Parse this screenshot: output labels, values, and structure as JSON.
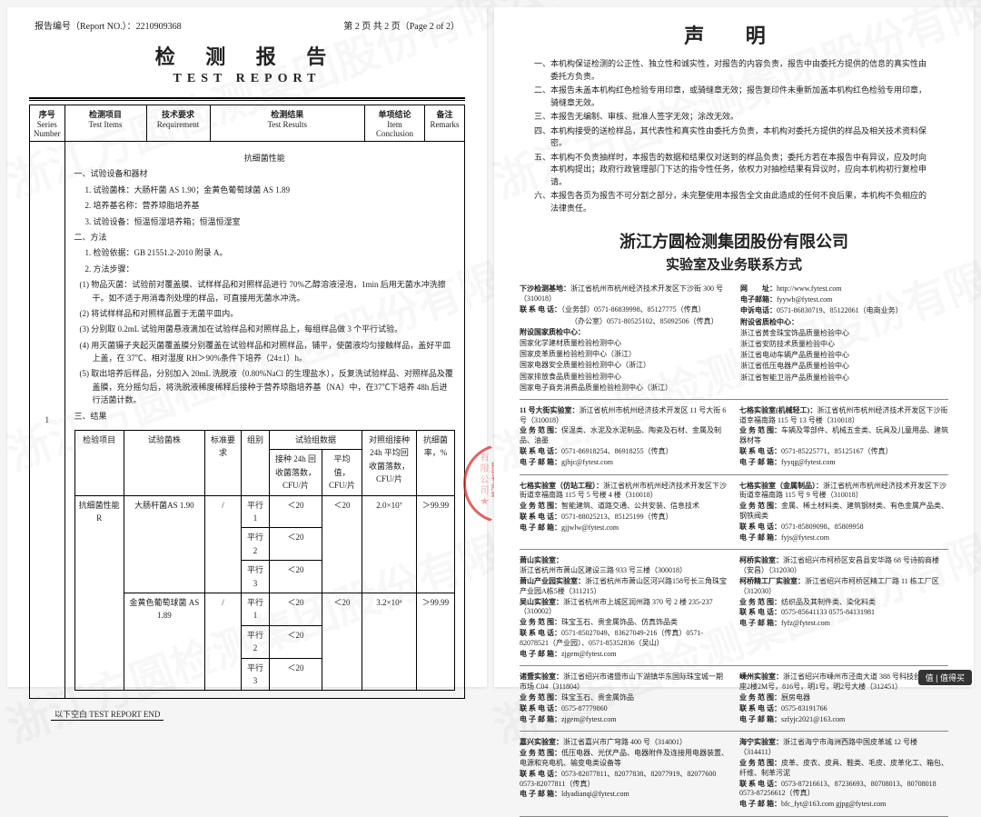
{
  "header": {
    "report_no_label": "报告编号（Report NO.）：",
    "report_no": "2210909368",
    "page_label": "第 2 页 共 2 页（Page 2 of 2）",
    "title_cn": "检 测 报 告",
    "title_en": "TEST   REPORT"
  },
  "columns": {
    "c1_cn": "序号",
    "c1_en": "Series Number",
    "c2_cn": "检测项目",
    "c2_en": "Test Items",
    "c3_cn": "技术要求",
    "c3_en": "Requirement",
    "c4_cn": "检测结果",
    "c4_en": "Test Results",
    "c5_cn": "单项结论",
    "c5_en": "Item Conclusion",
    "c6_cn": "备注",
    "c6_en": "Remarks"
  },
  "row_no": "1",
  "perf_title": "抗细菌性能",
  "s1": "一、试验设备和器材",
  "s1_1": "1. 试验菌株：大肠杆菌 AS 1.90；金黄色葡萄球菌 AS 1.89",
  "s1_2": "2. 培养基名称：营养琼脂培养基",
  "s1_3": "3. 试验设备：恒温恒湿培养箱；恒温恒湿室",
  "s2": "二、方法",
  "s2_1": "1. 检验依据：GB 21551.2-2010 附录 A。",
  "s2_2": "2. 方法步骤：",
  "s2_2_1": "(1) 物品灭菌：试验前对覆盖膜、试样样品和对照样品进行 70%乙醇溶液浸泡，1min 后用无菌水冲洗擦干。如不适于用消毒剂处理的样品，可直接用无菌水冲洗。",
  "s2_2_2": "(2) 将试样样品和对照样品置于无菌平皿内。",
  "s2_2_3": "(3) 分别取 0.2mL 试验用菌悬液滴加在试验样品和对照样品上，每组样品做 3 个平行试验。",
  "s2_2_4": "(4) 用灭菌镊子夹起灭菌覆盖膜分别覆盖在试验样品和对照样品，铺平，使菌液均匀接触样品，盖好平皿上盖，在 37℃、相对湿度 RH＞90%条件下培养（24±1）h。",
  "s2_2_5": "(5) 取出培养后样品，分别加入 20mL 洗脱液（0.80%NaCl 的生理盐水），反复洗试验样品、对照样品及覆盖膜，充分摇匀后，将洗脱液稀度稀释后接种于营养琼脂培养基（NA）中，在37℃下培养 48h 后进行活菌计数。",
  "s3": "三、结果",
  "rt": {
    "h1": "检验项目",
    "h2": "试验菌株",
    "h3": "标准要求",
    "h4": "组别",
    "h5": "试验组数据",
    "h5a": "接种 24h 回收菌落数，CFU/片",
    "h5b": "平均值，CFU/片",
    "h6": "对照组接种24h 平均回收菌落数，CFU/片",
    "h7": "抗细菌率，%",
    "item": "抗细菌性能 R",
    "strain1": "大肠杆菌AS 1.90",
    "strain2": "金黄色葡萄球菌 AS 1.89",
    "req": "/",
    "g1": "平行 1",
    "g2": "平行 2",
    "g3": "平行 3",
    "v": "＜20",
    "avg": "＜20",
    "ctrl1": "2.0×10⁷",
    "ctrl2": "3.2×10⁶",
    "rate": "＞99.99"
  },
  "end": "以下空白 TEST REPORT END",
  "watermark": "浙江方圆检测集团股份有限公司",
  "stamp_text": "报告专用章",
  "decl_title": "声  明",
  "decl": [
    "一、本机构保证检测的公正性、独立性和诚实性，对报告的内容负责，报告中由委托方提供的信息的真实性由委托方负责。",
    "二、本报告未盖本机构红色检验专用印章，或骑缝章无效；报告复印件未重新加盖本机构红色检验专用印章，骑缝章无效。",
    "三、本报告无编制、审核、批准人签字无效；涂改无效。",
    "四、本机构接受的送检样品，其代表性和真实性由委托方负责，本机构对委托方提供的样品及相关技术资料保密。",
    "五、本机构不负责抽样时，本报告的数据和结果仅对送到的样品负责；委托方若在本报告中有异议，应及时向本机构提出；政府行政管理部门下达的指令性任务，依权力对抽检结果有异议时，应向本机构初行复检申请。",
    "六、本报告各页为报告不可分割之部分，未完整使用本报告全文由此造成的任何不良后果，本机构不负相应的法律责任。"
  ],
  "contact_title": "浙江方圆检测集团股份有限公司",
  "contact_sub": "实验室及业务联系方式",
  "top_contact": {
    "l1_lbl": "下沙检测基地：",
    "l1": "浙江省杭州市杭州经济技术开发区下沙街 300 号（310018）",
    "l2_lbl": "联 系 电 话：",
    "l2": "（业务部）0571-86839998、85127775（传真）",
    "l3": "（办公室）0571-80525102、85092506（传真）",
    "r1_lbl": "网　　址：",
    "r1": "http://www.fytest.com",
    "r2_lbl": "电子邮箱：",
    "r2": "fyywb@fytest.com",
    "r3_lbl": "申诉电话：",
    "r3": "0571-86830719、85122061（电商业务）",
    "nc_lbl": "附设国家质检中心：",
    "pc_lbl": "附设省质检中心：",
    "nc": [
      "国家化学建材质量检验检测中心",
      "国家皮革质量检验检测中心（浙江）",
      "国家电器安全质量检验检测中心（浙江）",
      "国家排放食品质量检验检测中心",
      "国家电子商务消费品质量检验检测中心（浙江）"
    ],
    "pc": [
      "浙江省黄金珠宝饰品质量检验中心",
      "浙江省安防技术质量检验中心",
      "浙江省电动车辆产品质量检验中心",
      "浙江省低压电器产品质量检验中心",
      "浙江省智能卫浴产品质量检验中心"
    ]
  },
  "labs": [
    {
      "l_name": "11 号大街实验室：",
      "l_addr": "浙江省杭州市杭州经济技术开发区 11 号大街 6 号（310018）",
      "l_scope": "保温类、水泥及水泥制品、陶瓷及石材、金属及制品、油墨",
      "l_tel": "0571-86918254、86918255（传真）",
      "l_mail": "gjhjc@fytest.com",
      "r_name": "七格实验室(机械轻工)：",
      "r_addr": "浙江省杭州市杭州经济技术开发区下沙街道幸福南路 115 号 13 号楼（310018）",
      "r_scope": "车辆及零部件、机械五金类、玩具及儿童用品、建筑器材等",
      "r_tel": "0571-85225771、85125167（传真）",
      "r_mail": "fyyqg@fytest.com"
    },
    {
      "l_name": "七格实验室（仿站工程）：",
      "l_addr": "浙江省杭州市杭州经济技术开发区下沙街道幸福南路 115 号 5 号楼 4 楼（310018）",
      "l_scope": "智能建筑、道路交通、公共安装、信息技术",
      "l_tel": "0571-88025213、85125199（传真）",
      "l_mail": "gjjwlw@fytest.com",
      "r_name": "七格实验室（金属制品）：",
      "r_addr": "浙江省杭州市杭州经济技术开发区下沙街道幸福南路 115 号 9 号楼（310018）",
      "r_scope": "金属、稀土材料类、建筑钢材类、有色金属产品类、钢铁阀类",
      "r_tel": "0571-85809098、85809958",
      "r_mail": "fyjs@fytest.com"
    },
    {
      "l_name": "萧山实验室：",
      "l_addr": "浙江省杭州市萧山区建设三路 933 号三楼（300018）",
      "l_name2": "萧山产业园实验室：",
      "l_addr2": "浙江省杭州市萧山区河兴路158号长三角珠宝产业园A栋5楼（311215）",
      "l_scope": "珠宝玉石、贵金属饰品、仿真饰品类",
      "l_tel": "0571-85027049、83627049-216（传真）0571-82078521（产业园）、0571-85352836（吴山）",
      "l_mail": "zjgem@fytest.com",
      "l_extra": "吴山实验室：浙江省杭州市上城区润州路 370 号 2 楼 235-237（310002）",
      "r_name": "柯桥实验室：",
      "r_addr": "浙江省绍兴市柯桥区安昌县安华路 68 号诗韵商楼（安昌）（312030）",
      "r_name2": "柯桥精工厂实验室：",
      "r_addr2": "浙江省绍兴市柯桥区精工厂路 11 栋工厂区（312030）",
      "r_scope": "纺织品及其制件类、染化料类",
      "r_tel": "0575-85641133 0575-84131981",
      "r_mail": "fyfz@fytest.com"
    },
    {
      "l_name": "诸暨实验室：",
      "l_addr": "浙江省绍兴市诸暨市山下湖镇华东国际珠宝城一期市场 C04（311804）",
      "l_scope": "珠宝玉石、贵金属饰品",
      "l_tel": "0575-87779860",
      "l_mail": "zjgem@fytest.com",
      "r_name": "嵊州实验室：",
      "r_addr": "浙江省绍兴市嵊州市泾南大道 388 号科技创业中心A座2楼2M号，816号，明1号，明2号大楼（312451）",
      "r_scope": "厨房电器",
      "r_tel": "0575-83191766",
      "r_mail": "szfyjc2021@163.com"
    },
    {
      "l_name": "嘉兴实验室：",
      "l_addr": "浙江省嘉兴市广穹路 400 号（314001）",
      "l_scope": "低压电器、光伏产品、电器附件及连接用电器装置、电源和充电机、输变电类设备等",
      "l_tel": "0573-82077811、82077838、82077919、82077600 0573-82077811（传真）",
      "l_mail": "ldyadianqi@fytest.com",
      "r_name": "海宁实验室：",
      "r_addr": "浙江省海宁市海洲西路中国皮革城 12 号楼（314411）",
      "r_scope": "皮革、皮衣、皮具、鞋类、毛皮、皮革化工、箱包、纤维、制革污泥",
      "r_tel": "0573-87216613、87236693、80708013、80708018 0573-87256612（传真）",
      "r_mail": "bfc_fyt@163.com  gjpg@fytest.com"
    }
  ],
  "tag": "值 | 值得买"
}
